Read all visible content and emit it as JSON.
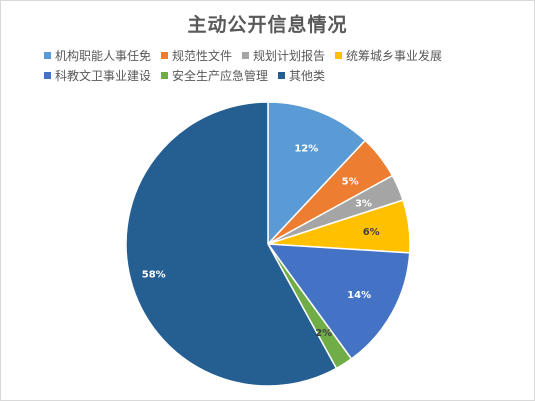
{
  "chart_data": {
    "type": "pie",
    "title": "主动公开信息情况",
    "legend_position": "top",
    "slices": [
      {
        "name": "机构职能人事任免",
        "value": 12,
        "label": "12%",
        "color": "#5b9bd5",
        "label_color": "#ffffff"
      },
      {
        "name": "规范性文件",
        "value": 5,
        "label": "5%",
        "color": "#ed7d31",
        "label_color": "#ffffff"
      },
      {
        "name": "规划计划报告",
        "value": 3,
        "label": "3%",
        "color": "#a5a5a5",
        "label_color": "#ffffff"
      },
      {
        "name": "统筹城乡事业发展",
        "value": 6,
        "label": "6%",
        "color": "#ffc000",
        "label_color": "#404040"
      },
      {
        "name": "科教文卫事业建设",
        "value": 14,
        "label": "14%",
        "color": "#4472c4",
        "label_color": "#ffffff"
      },
      {
        "name": "安全生产应急管理",
        "value": 2,
        "label": "2%",
        "color": "#70ad47",
        "label_color": "#404040"
      },
      {
        "name": "其他类",
        "value": 58,
        "label": "58%",
        "color": "#255e91",
        "label_color": "#ffffff"
      }
    ]
  }
}
